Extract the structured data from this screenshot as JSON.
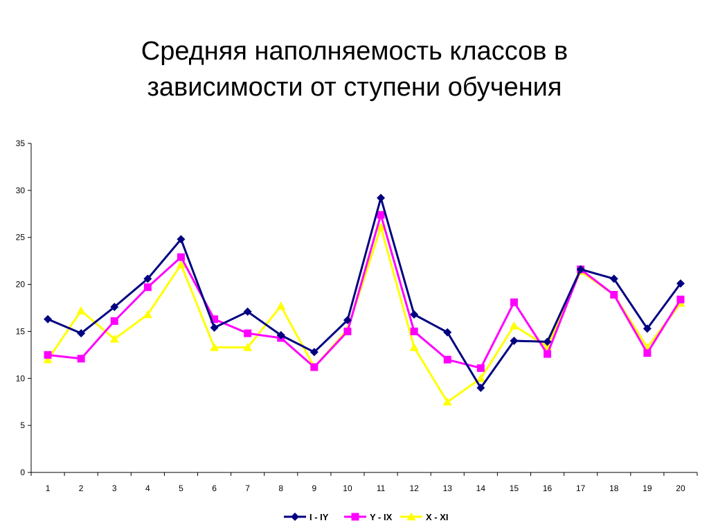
{
  "title_line1": "Средняя наполняемость классов в",
  "title_line2": "зависимости от ступени обучения",
  "chart_data": {
    "type": "line",
    "x": [
      1,
      2,
      3,
      4,
      5,
      6,
      7,
      8,
      9,
      10,
      11,
      12,
      13,
      14,
      15,
      16,
      17,
      18,
      19,
      20
    ],
    "ylim": [
      0,
      35
    ],
    "yticks": [
      0,
      5,
      10,
      15,
      20,
      25,
      30,
      35
    ],
    "grid": false,
    "legend_position": "bottom",
    "series": [
      {
        "name": "I  - IY",
        "color": "#000080",
        "marker": "diamond",
        "values": [
          16.3,
          14.8,
          17.6,
          20.6,
          24.8,
          15.4,
          17.1,
          14.6,
          12.8,
          16.2,
          29.2,
          16.8,
          14.9,
          9.0,
          14.0,
          13.9,
          21.6,
          20.6,
          15.3,
          20.1
        ]
      },
      {
        "name": "Y - IX",
        "color": "#FF00FF",
        "marker": "square",
        "values": [
          12.5,
          12.1,
          16.1,
          19.7,
          22.9,
          16.3,
          14.8,
          14.3,
          11.2,
          15.0,
          27.4,
          15.0,
          12.0,
          11.1,
          18.1,
          12.6,
          21.6,
          18.9,
          12.7,
          18.4
        ]
      },
      {
        "name": "X - XI",
        "color": "#FFFF00",
        "marker": "triangle",
        "values": [
          12.0,
          17.2,
          14.2,
          16.8,
          22.1,
          13.3,
          13.3,
          17.7,
          11.2,
          15.2,
          26.1,
          13.3,
          7.5,
          10.0,
          15.6,
          13.4,
          21.4,
          18.9,
          13.3,
          18.0
        ]
      }
    ]
  }
}
